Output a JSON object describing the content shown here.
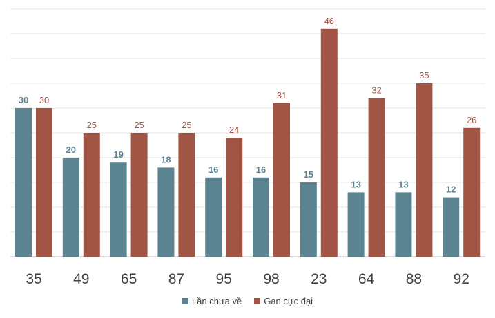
{
  "chart_data": {
    "type": "bar",
    "categories": [
      "35",
      "49",
      "65",
      "87",
      "95",
      "98",
      "23",
      "64",
      "88",
      "92"
    ],
    "series": [
      {
        "name": "Lần chưa về",
        "color": "#5b8490",
        "values": [
          30,
          20,
          19,
          18,
          16,
          16,
          15,
          13,
          13,
          12
        ]
      },
      {
        "name": "Gan cực đại",
        "color": "#a05545",
        "values": [
          30,
          25,
          25,
          25,
          24,
          31,
          46,
          32,
          35,
          26
        ]
      }
    ],
    "ylim": [
      0,
      50
    ],
    "grid": true,
    "legend": "bottom"
  }
}
